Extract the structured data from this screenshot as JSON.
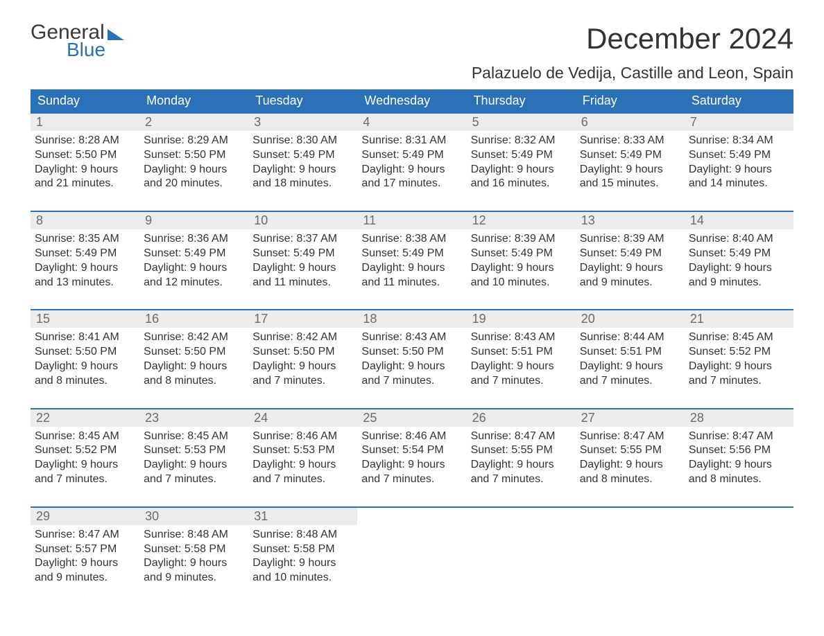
{
  "brand": {
    "general": "General",
    "blue": "Blue"
  },
  "title": "December 2024",
  "location": "Palazuelo de Vedija, Castille and Leon, Spain",
  "colors": {
    "header_bg": "#2a71b8",
    "header_text": "#ffffff",
    "daynum_bg": "#ececec",
    "daynum_text": "#6b6b6b",
    "body_text": "#333333",
    "page_bg": "#ffffff",
    "week_divider": "#2a71b8"
  },
  "typography": {
    "title_fontsize": 42,
    "location_fontsize": 23,
    "header_fontsize": 18,
    "daynum_fontsize": 18,
    "body_fontsize": 16
  },
  "dayNames": [
    "Sunday",
    "Monday",
    "Tuesday",
    "Wednesday",
    "Thursday",
    "Friday",
    "Saturday"
  ],
  "labels": {
    "sunrise": "Sunrise:",
    "sunset": "Sunset:",
    "daylight": "Daylight:"
  },
  "weeks": [
    [
      {
        "n": 1,
        "sunrise": "8:28 AM",
        "sunset": "5:50 PM",
        "daylight": "9 hours and 21 minutes."
      },
      {
        "n": 2,
        "sunrise": "8:29 AM",
        "sunset": "5:50 PM",
        "daylight": "9 hours and 20 minutes."
      },
      {
        "n": 3,
        "sunrise": "8:30 AM",
        "sunset": "5:49 PM",
        "daylight": "9 hours and 18 minutes."
      },
      {
        "n": 4,
        "sunrise": "8:31 AM",
        "sunset": "5:49 PM",
        "daylight": "9 hours and 17 minutes."
      },
      {
        "n": 5,
        "sunrise": "8:32 AM",
        "sunset": "5:49 PM",
        "daylight": "9 hours and 16 minutes."
      },
      {
        "n": 6,
        "sunrise": "8:33 AM",
        "sunset": "5:49 PM",
        "daylight": "9 hours and 15 minutes."
      },
      {
        "n": 7,
        "sunrise": "8:34 AM",
        "sunset": "5:49 PM",
        "daylight": "9 hours and 14 minutes."
      }
    ],
    [
      {
        "n": 8,
        "sunrise": "8:35 AM",
        "sunset": "5:49 PM",
        "daylight": "9 hours and 13 minutes."
      },
      {
        "n": 9,
        "sunrise": "8:36 AM",
        "sunset": "5:49 PM",
        "daylight": "9 hours and 12 minutes."
      },
      {
        "n": 10,
        "sunrise": "8:37 AM",
        "sunset": "5:49 PM",
        "daylight": "9 hours and 11 minutes."
      },
      {
        "n": 11,
        "sunrise": "8:38 AM",
        "sunset": "5:49 PM",
        "daylight": "9 hours and 11 minutes."
      },
      {
        "n": 12,
        "sunrise": "8:39 AM",
        "sunset": "5:49 PM",
        "daylight": "9 hours and 10 minutes."
      },
      {
        "n": 13,
        "sunrise": "8:39 AM",
        "sunset": "5:49 PM",
        "daylight": "9 hours and 9 minutes."
      },
      {
        "n": 14,
        "sunrise": "8:40 AM",
        "sunset": "5:49 PM",
        "daylight": "9 hours and 9 minutes."
      }
    ],
    [
      {
        "n": 15,
        "sunrise": "8:41 AM",
        "sunset": "5:50 PM",
        "daylight": "9 hours and 8 minutes."
      },
      {
        "n": 16,
        "sunrise": "8:42 AM",
        "sunset": "5:50 PM",
        "daylight": "9 hours and 8 minutes."
      },
      {
        "n": 17,
        "sunrise": "8:42 AM",
        "sunset": "5:50 PM",
        "daylight": "9 hours and 7 minutes."
      },
      {
        "n": 18,
        "sunrise": "8:43 AM",
        "sunset": "5:50 PM",
        "daylight": "9 hours and 7 minutes."
      },
      {
        "n": 19,
        "sunrise": "8:43 AM",
        "sunset": "5:51 PM",
        "daylight": "9 hours and 7 minutes."
      },
      {
        "n": 20,
        "sunrise": "8:44 AM",
        "sunset": "5:51 PM",
        "daylight": "9 hours and 7 minutes."
      },
      {
        "n": 21,
        "sunrise": "8:45 AM",
        "sunset": "5:52 PM",
        "daylight": "9 hours and 7 minutes."
      }
    ],
    [
      {
        "n": 22,
        "sunrise": "8:45 AM",
        "sunset": "5:52 PM",
        "daylight": "9 hours and 7 minutes."
      },
      {
        "n": 23,
        "sunrise": "8:45 AM",
        "sunset": "5:53 PM",
        "daylight": "9 hours and 7 minutes."
      },
      {
        "n": 24,
        "sunrise": "8:46 AM",
        "sunset": "5:53 PM",
        "daylight": "9 hours and 7 minutes."
      },
      {
        "n": 25,
        "sunrise": "8:46 AM",
        "sunset": "5:54 PM",
        "daylight": "9 hours and 7 minutes."
      },
      {
        "n": 26,
        "sunrise": "8:47 AM",
        "sunset": "5:55 PM",
        "daylight": "9 hours and 7 minutes."
      },
      {
        "n": 27,
        "sunrise": "8:47 AM",
        "sunset": "5:55 PM",
        "daylight": "9 hours and 8 minutes."
      },
      {
        "n": 28,
        "sunrise": "8:47 AM",
        "sunset": "5:56 PM",
        "daylight": "9 hours and 8 minutes."
      }
    ],
    [
      {
        "n": 29,
        "sunrise": "8:47 AM",
        "sunset": "5:57 PM",
        "daylight": "9 hours and 9 minutes."
      },
      {
        "n": 30,
        "sunrise": "8:48 AM",
        "sunset": "5:58 PM",
        "daylight": "9 hours and 9 minutes."
      },
      {
        "n": 31,
        "sunrise": "8:48 AM",
        "sunset": "5:58 PM",
        "daylight": "9 hours and 10 minutes."
      },
      null,
      null,
      null,
      null
    ]
  ]
}
